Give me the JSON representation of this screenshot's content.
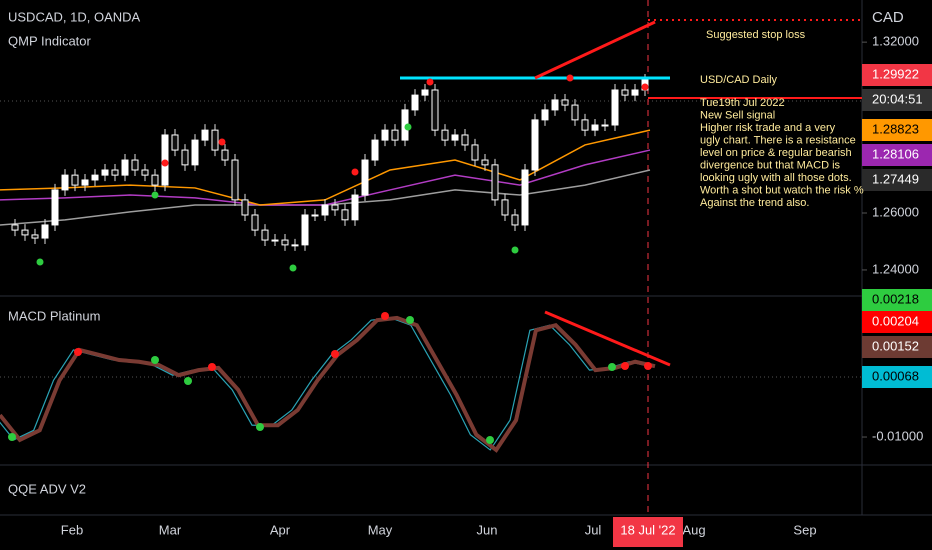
{
  "header": {
    "symbol": "USDCAD, 1D, OANDA",
    "indicator": "QMP Indicator",
    "currency": "CAD"
  },
  "price": {
    "closes": [
      1.2558,
      1.254,
      1.2523,
      1.2512,
      1.2558,
      1.2681,
      1.2733,
      1.2698,
      1.2716,
      1.2733,
      1.2751,
      1.2733,
      1.2786,
      1.2751,
      1.2733,
      1.2698,
      1.2874,
      1.2821,
      1.2769,
      1.2856,
      1.2891,
      1.2821,
      1.2786,
      1.2646,
      1.2593,
      1.254,
      1.2505,
      1.2505,
      1.2488,
      1.2488,
      1.2593,
      1.2593,
      1.2628,
      1.2611,
      1.2576,
      1.2663,
      1.2786,
      1.2856,
      1.2891,
      1.2856,
      1.2962,
      1.3014,
      1.3032,
      1.2891,
      1.2856,
      1.2874,
      1.2839,
      1.2786,
      1.2769,
      1.2646,
      1.2593,
      1.2558,
      1.2751,
      1.2927,
      1.2962,
      1.2997,
      1.2979,
      1.2927,
      1.2891,
      1.2909,
      1.2909,
      1.3032,
      1.3014,
      1.3032,
      1.3067
    ],
    "ma_orange": [
      1.2681,
      1.2688,
      1.2698,
      1.2688,
      1.2628,
      1.2646,
      1.2751,
      1.2786,
      1.2716,
      1.2839,
      1.2891
    ],
    "ma_purple": [
      1.2646,
      1.2653,
      1.2663,
      1.2653,
      1.2628,
      1.2628,
      1.2681,
      1.2733,
      1.2698,
      1.2769,
      1.2821
    ],
    "ma_gray": [
      1.2558,
      1.2576,
      1.2604,
      1.2628,
      1.2628,
      1.2628,
      1.2646,
      1.2681,
      1.2663,
      1.2698,
      1.2751
    ],
    "ylim": [
      1.2312,
      1.3348
    ],
    "yticks": [
      {
        "value": 1.32,
        "label": "1.32000"
      },
      {
        "value": 1.26,
        "label": "1.26000"
      },
      {
        "value": 1.24,
        "label": "1.24000"
      }
    ],
    "labels": {
      "last": "1.29922",
      "countdown": "20:04:51",
      "orange": "1.28823",
      "purple": "1.28106",
      "gray": "1.27449"
    }
  },
  "annotations": {
    "stop": "Suggested stop loss",
    "pair": "USD/CAD Daily",
    "body": [
      "Tue19th Jul 2022",
      "New Sell signal",
      "Higher risk trade and a very",
      "ugly chart. There is a resistance",
      "level on price & regular bearish",
      "divergence but that MACD is",
      "looking ugly with all those dots.",
      "Worth a shot but watch the risk %",
      "Against the trend also."
    ]
  },
  "macd": {
    "title": "MACD Platinum",
    "values": [
      -0.0061,
      -0.0105,
      -0.0088,
      0.0001,
      0.0055,
      0.0046,
      0.0037,
      0.0034,
      0.0028,
      0.001,
      0.0019,
      0.0023,
      -0.0016,
      -0.0079,
      -0.0079,
      -0.0052,
      0.0001,
      0.0046,
      0.0073,
      0.0108,
      0.0112,
      0.0099,
      0.0037,
      -0.0025,
      -0.0096,
      -0.0123,
      -0.007,
      0.009,
      0.0099,
      0.0064,
      0.0019,
      0.0023,
      0.0034,
      0.0026
    ],
    "ylim": [
      -0.01498,
      0.01492
    ],
    "yticks": [
      {
        "value": -0.01,
        "label": "-0.01000"
      }
    ],
    "labels": {
      "green": "0.00218",
      "red": "0.00204",
      "brown": "0.00152",
      "teal": "0.00068"
    }
  },
  "qqe": {
    "title": "QQE ADV V2"
  },
  "xaxis": {
    "months": [
      "Feb",
      "Mar",
      "Apr",
      "May",
      "Jun",
      "Jul",
      "Aug",
      "Sep"
    ],
    "current": "18 Jul '22"
  }
}
